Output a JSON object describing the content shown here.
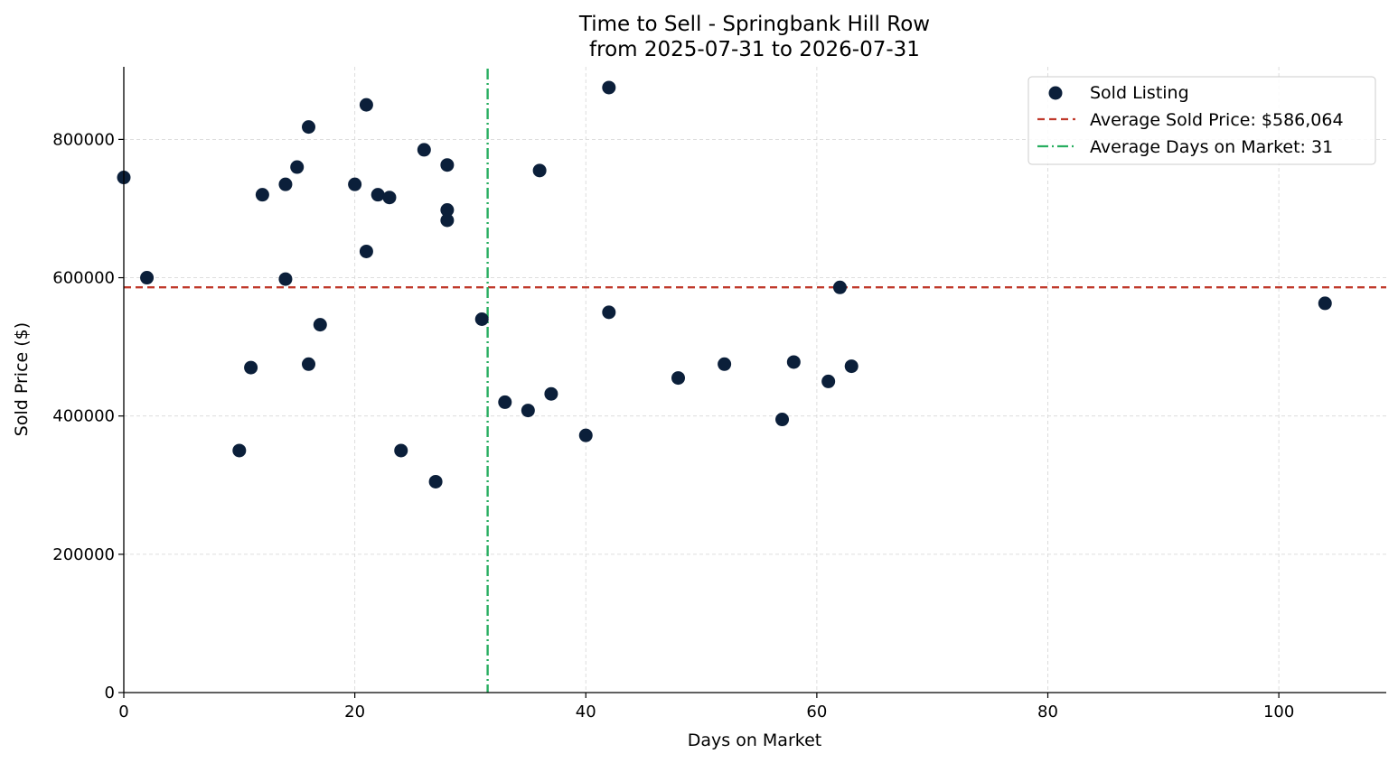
{
  "chart_data": {
    "type": "scatter",
    "title": "Time to Sell - Springbank Hill Row",
    "subtitle": "from 2025-07-31 to 2026-07-31",
    "xlabel": "Days on Market",
    "ylabel": "Sold Price ($)",
    "xlim": [
      0,
      109.3
    ],
    "ylim": [
      0,
      905000
    ],
    "x_ticks": [
      0,
      20,
      40,
      60,
      80,
      100
    ],
    "y_ticks": [
      0,
      200000,
      400000,
      600000,
      800000
    ],
    "grid": true,
    "legend_position": "top-right",
    "series": [
      {
        "name": "Sold Listing",
        "color": "#0b1f3a",
        "points": [
          {
            "x": 0,
            "y": 745000
          },
          {
            "x": 2,
            "y": 600000
          },
          {
            "x": 10,
            "y": 350000
          },
          {
            "x": 11,
            "y": 470000
          },
          {
            "x": 12,
            "y": 720000
          },
          {
            "x": 14,
            "y": 735000
          },
          {
            "x": 14,
            "y": 598000
          },
          {
            "x": 15,
            "y": 760000
          },
          {
            "x": 16,
            "y": 818000
          },
          {
            "x": 16,
            "y": 475000
          },
          {
            "x": 17,
            "y": 532000
          },
          {
            "x": 20,
            "y": 735000
          },
          {
            "x": 21,
            "y": 850000
          },
          {
            "x": 21,
            "y": 638000
          },
          {
            "x": 22,
            "y": 720000
          },
          {
            "x": 23,
            "y": 716000
          },
          {
            "x": 24,
            "y": 350000
          },
          {
            "x": 26,
            "y": 785000
          },
          {
            "x": 27,
            "y": 305000
          },
          {
            "x": 28,
            "y": 763000
          },
          {
            "x": 28,
            "y": 698000
          },
          {
            "x": 28,
            "y": 683000
          },
          {
            "x": 31,
            "y": 540000
          },
          {
            "x": 33,
            "y": 420000
          },
          {
            "x": 35,
            "y": 408000
          },
          {
            "x": 36,
            "y": 755000
          },
          {
            "x": 37,
            "y": 432000
          },
          {
            "x": 40,
            "y": 372000
          },
          {
            "x": 42,
            "y": 875000
          },
          {
            "x": 42,
            "y": 550000
          },
          {
            "x": 48,
            "y": 455000
          },
          {
            "x": 52,
            "y": 475000
          },
          {
            "x": 57,
            "y": 395000
          },
          {
            "x": 58,
            "y": 478000
          },
          {
            "x": 61,
            "y": 450000
          },
          {
            "x": 62,
            "y": 586000
          },
          {
            "x": 63,
            "y": 472000
          },
          {
            "x": 104,
            "y": 563000
          }
        ]
      }
    ],
    "reference_lines": [
      {
        "name": "Average Sold Price: $586,064",
        "orientation": "horizontal",
        "value": 586064,
        "color": "#c0392b",
        "style": "dashed"
      },
      {
        "name": "Average Days on Market: 31",
        "orientation": "vertical",
        "value": 31.5,
        "color": "#27ae60",
        "style": "dashdot"
      }
    ]
  }
}
